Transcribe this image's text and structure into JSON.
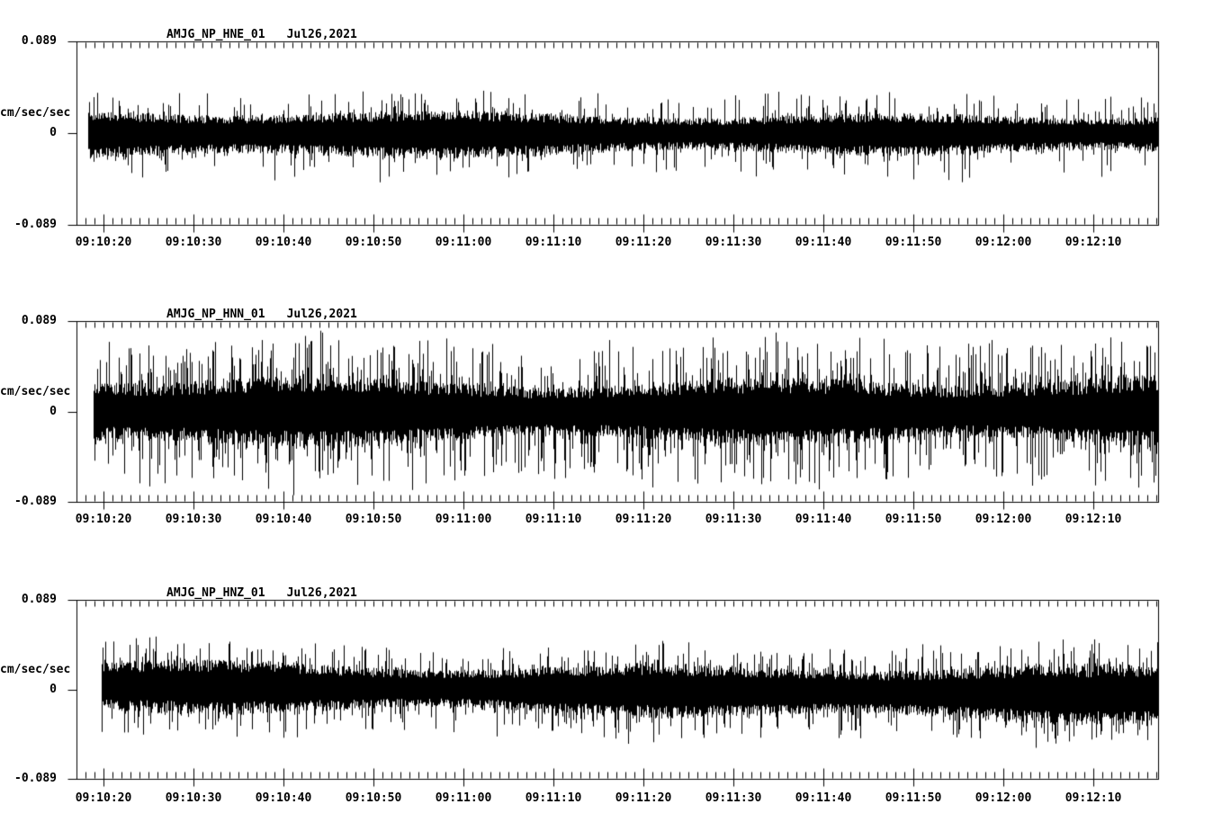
{
  "colors": {
    "background": "#ffffff",
    "trace": "#000000",
    "axis_frame": "#000000",
    "text": "#000000"
  },
  "chart_data": [
    {
      "type": "line",
      "station": "AMJG_NP_HNE_01",
      "date": "Jul26,2021",
      "ylabel": "cm/sec/sec",
      "ylim": [
        -0.089,
        0.089
      ],
      "ytick_labels": [
        "0.089",
        "0",
        "-0.089"
      ],
      "xtick_labels": [
        "09:10:20",
        "09:10:30",
        "09:10:40",
        "09:10:50",
        "09:11:00",
        "09:11:10",
        "09:11:20",
        "09:11:30",
        "09:11:40",
        "09:11:50",
        "09:12:00",
        "09:12:10"
      ],
      "x_minor_tick_sec": 1,
      "x_major_tick_sec": 10,
      "grid": false,
      "legend": "none",
      "noise": {
        "description": "continuous high-frequency ground-acceleration noise, roughly stationary",
        "band_amp": 0.016,
        "peak_amp": 0.04,
        "spike_prob": 0.2,
        "down_bias": 1.15,
        "center_drift": [
          0.0,
          0.0
        ],
        "start_offset_sec": 1.3,
        "seed": 71
      }
    },
    {
      "type": "line",
      "station": "AMJG_NP_HNN_01",
      "date": "Jul26,2021",
      "ylabel": "cm/sec/sec",
      "ylim": [
        -0.089,
        0.089
      ],
      "ytick_labels": [
        "0.089",
        "0",
        "-0.089"
      ],
      "xtick_labels": [
        "09:10:20",
        "09:10:30",
        "09:10:40",
        "09:10:50",
        "09:11:00",
        "09:11:10",
        "09:11:20",
        "09:11:30",
        "09:11:40",
        "09:11:50",
        "09:12:00",
        "09:12:10"
      ],
      "x_minor_tick_sec": 1,
      "x_major_tick_sec": 10,
      "grid": false,
      "legend": "none",
      "noise": {
        "description": "densest, highest-amplitude noise band with frequent tall spikes",
        "band_amp": 0.027,
        "peak_amp": 0.075,
        "spike_prob": 0.38,
        "down_bias": 1.0,
        "center_drift": [
          0.0,
          0.0
        ],
        "start_offset_sec": 1.9,
        "seed": 72
      }
    },
    {
      "type": "line",
      "station": "AMJG_NP_HNZ_01",
      "date": "Jul26,2021",
      "ylabel": "cm/sec/sec",
      "ylim": [
        -0.089,
        0.089
      ],
      "ytick_labels": [
        "0.089",
        "0",
        "-0.089"
      ],
      "xtick_labels": [
        "09:10:20",
        "09:10:30",
        "09:10:40",
        "09:10:50",
        "09:11:00",
        "09:11:10",
        "09:11:20",
        "09:11:30",
        "09:11:40",
        "09:11:50",
        "09:12:00",
        "09:12:10"
      ],
      "x_minor_tick_sec": 1,
      "x_major_tick_sec": 10,
      "grid": false,
      "legend": "none",
      "noise": {
        "description": "medium-amplitude noise, slightly top-heavy early then drifting slightly low",
        "band_amp": 0.021,
        "peak_amp": 0.047,
        "spike_prob": 0.3,
        "down_bias": 1.05,
        "center_drift": [
          0.004,
          -0.005
        ],
        "start_offset_sec": 2.8,
        "seed": 73
      }
    }
  ]
}
